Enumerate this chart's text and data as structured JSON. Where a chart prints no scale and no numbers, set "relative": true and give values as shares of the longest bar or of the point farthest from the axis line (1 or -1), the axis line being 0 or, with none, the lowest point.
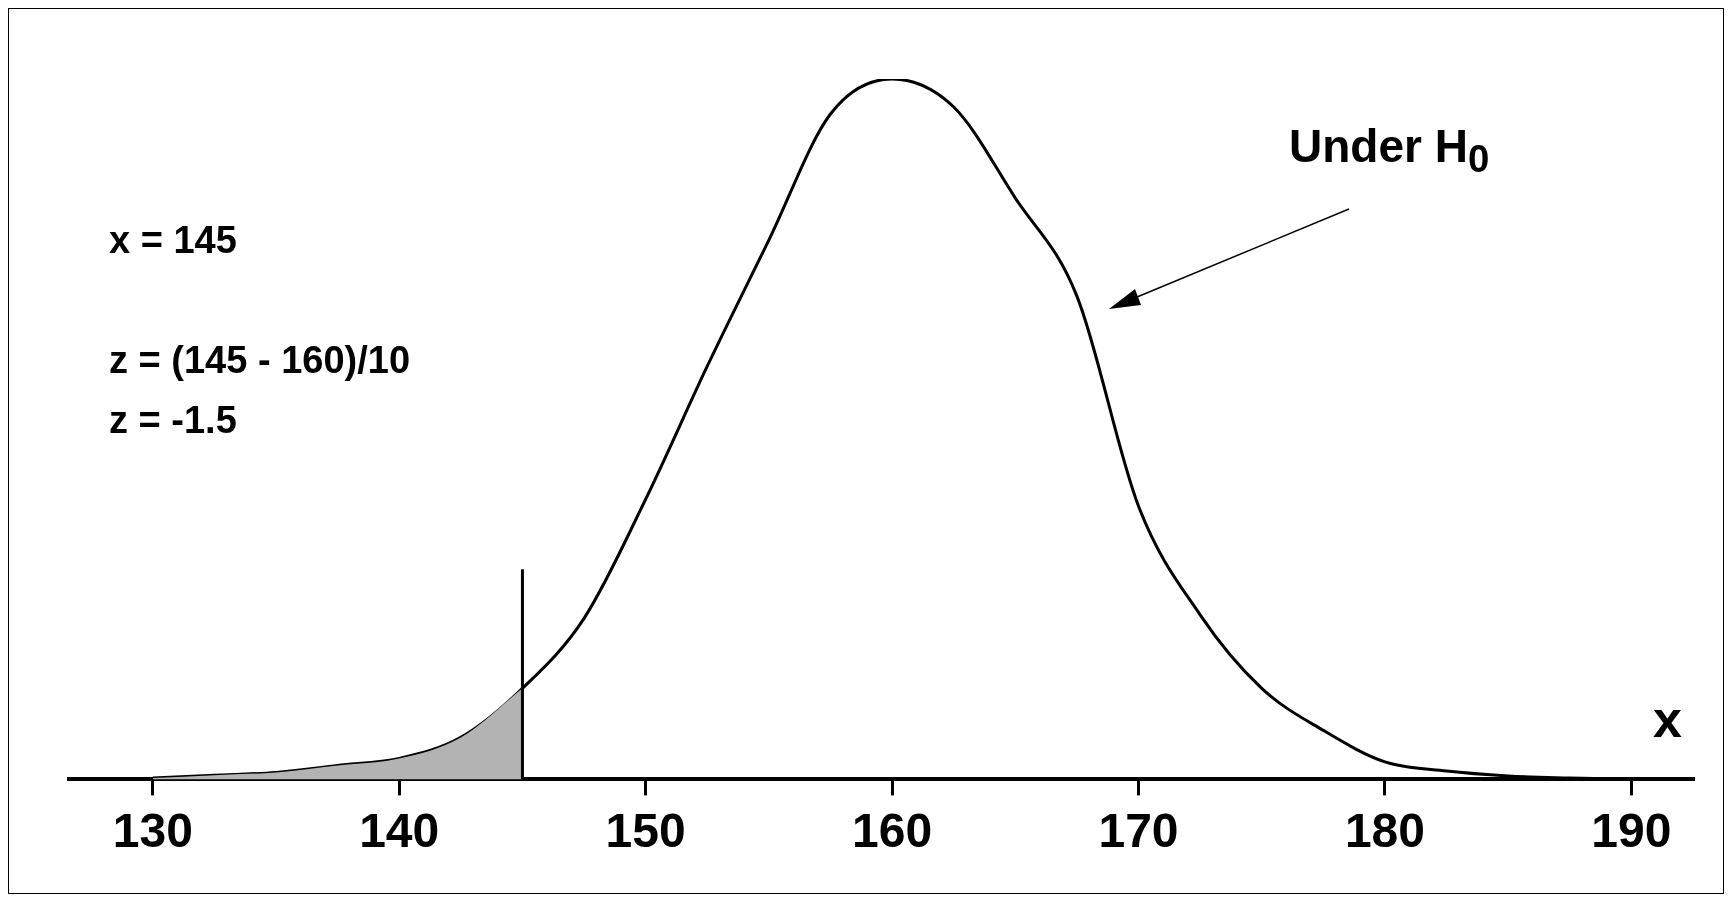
{
  "chart_data": {
    "type": "line",
    "relative": true,
    "xlabel": "x",
    "xlim": [
      126.6,
      192.5
    ],
    "xticks": [
      130,
      140,
      150,
      160,
      170,
      180,
      190
    ],
    "grid": false,
    "legend": false,
    "marker": "none",
    "annotations": [
      "x = 145",
      "z = (145 - 160)/10",
      "z = -1.5",
      "Under H$_{0}$"
    ],
    "ref_lines": [
      {
        "axis": "x",
        "value": 145,
        "color": "#000000"
      }
    ],
    "series": [
      {
        "type": "area",
        "color": "#b3b3b3",
        "x": [
          130,
          132.5,
          135,
          137.5,
          140,
          142.5,
          145
        ],
        "values": [
          0.002,
          0.006,
          0.01,
          0.02,
          0.03,
          0.06,
          0.13
        ]
      },
      {
        "type": "line",
        "color": "#000000",
        "x": [
          130,
          132.5,
          135,
          137.5,
          140,
          142.5,
          145,
          147.5,
          150,
          152.5,
          155,
          157.5,
          160,
          162.5,
          165,
          167.5,
          170,
          172.5,
          175,
          177.5,
          180,
          182.5,
          185,
          187.5,
          190
        ],
        "values": [
          0.002,
          0.006,
          0.01,
          0.02,
          0.03,
          0.06,
          0.13,
          0.23,
          0.4,
          0.59,
          0.77,
          0.95,
          1,
          0.96,
          0.83,
          0.69,
          0.39,
          0.235,
          0.13,
          0.07,
          0.025,
          0.012,
          0.005,
          0.002,
          0
        ]
      }
    ]
  }
}
